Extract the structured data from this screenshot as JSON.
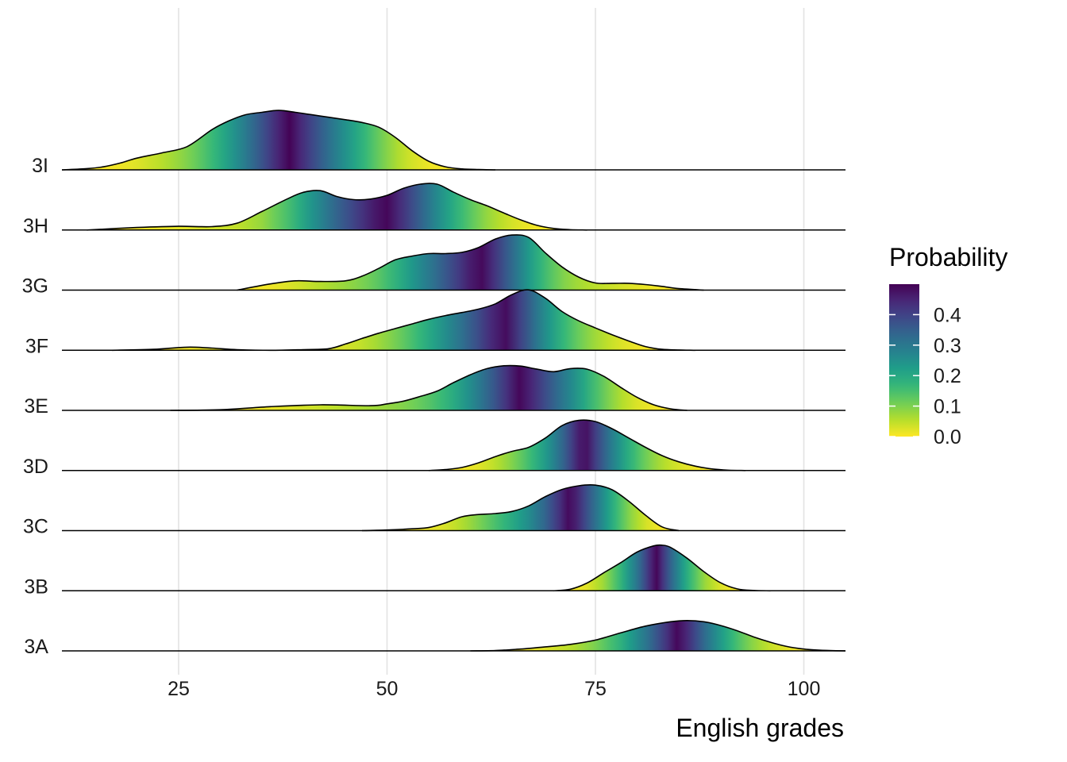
{
  "chart_data": {
    "type": "ridgeline",
    "xlabel": "English grades",
    "ylabel": "",
    "xlim": [
      11,
      105
    ],
    "x_ticks": [
      25,
      50,
      75,
      100
    ],
    "x_tick_labels": [
      "25",
      "50",
      "75",
      "100"
    ],
    "grid": "vertical major gridlines",
    "fill": "viridis gradient (reversed) mapped to tail probability",
    "legend": {
      "title": "Probability",
      "placement": "right",
      "ticks": [
        0.0,
        0.1,
        0.2,
        0.3,
        0.4
      ],
      "tick_labels": [
        "0.0",
        "0.1",
        "0.2",
        "0.3",
        "0.4"
      ],
      "max": 0.5
    },
    "series": [
      {
        "name": "3A",
        "x": [
          60,
          63,
          66,
          69,
          72,
          75,
          78,
          81,
          84,
          86,
          88,
          90,
          92,
          94,
          96,
          98,
          100,
          102,
          105
        ],
        "y": [
          0,
          0.01,
          0.06,
          0.13,
          0.21,
          0.35,
          0.58,
          0.8,
          0.94,
          0.98,
          0.94,
          0.82,
          0.65,
          0.45,
          0.28,
          0.14,
          0.06,
          0.02,
          0
        ]
      },
      {
        "name": "3B",
        "x": [
          70,
          72,
          74,
          76,
          78,
          80,
          82,
          83,
          84,
          86,
          88,
          90,
          92,
          94,
          96
        ],
        "y": [
          0,
          0.05,
          0.25,
          0.58,
          0.9,
          1.25,
          1.45,
          1.47,
          1.4,
          1.05,
          0.62,
          0.26,
          0.06,
          0.01,
          0
        ]
      },
      {
        "name": "3C",
        "x": [
          47,
          50,
          53,
          55,
          57,
          59,
          61,
          63,
          65,
          67,
          69,
          71,
          73,
          75,
          77,
          79,
          81,
          83,
          85
        ],
        "y": [
          0,
          0.02,
          0.06,
          0.1,
          0.25,
          0.45,
          0.52,
          0.55,
          0.62,
          0.8,
          1.1,
          1.33,
          1.45,
          1.47,
          1.32,
          0.95,
          0.5,
          0.12,
          0
        ]
      },
      {
        "name": "3D",
        "x": [
          55,
          57,
          59,
          61,
          63,
          65,
          67,
          69,
          71,
          73,
          75,
          77,
          79,
          81,
          83,
          85,
          87,
          89,
          91,
          93
        ],
        "y": [
          0,
          0.03,
          0.1,
          0.25,
          0.45,
          0.62,
          0.75,
          1.05,
          1.45,
          1.62,
          1.58,
          1.35,
          1.05,
          0.75,
          0.48,
          0.28,
          0.14,
          0.05,
          0.01,
          0
        ]
      },
      {
        "name": "3E",
        "x": [
          24,
          30,
          36,
          42,
          48,
          50,
          52,
          54,
          56,
          58,
          60,
          62,
          64,
          66,
          68,
          70,
          72,
          74,
          76,
          78,
          80,
          82,
          84,
          86
        ],
        "y": [
          0,
          0.02,
          0.12,
          0.18,
          0.15,
          0.21,
          0.3,
          0.45,
          0.62,
          0.9,
          1.15,
          1.35,
          1.44,
          1.43,
          1.33,
          1.25,
          1.35,
          1.33,
          1.1,
          0.75,
          0.42,
          0.18,
          0.05,
          0
        ]
      },
      {
        "name": "3F",
        "x": [
          17,
          22,
          26,
          29,
          32,
          36,
          40,
          43,
          45,
          47,
          49,
          51,
          53,
          55,
          57,
          59,
          61,
          63,
          65,
          67,
          69,
          71,
          73,
          75,
          77,
          79,
          81,
          83,
          85,
          87
        ],
        "y": [
          0,
          0.03,
          0.1,
          0.07,
          0.02,
          0,
          0.02,
          0.05,
          0.2,
          0.38,
          0.55,
          0.7,
          0.85,
          1.0,
          1.12,
          1.22,
          1.33,
          1.5,
          1.8,
          1.95,
          1.68,
          1.25,
          0.95,
          0.72,
          0.5,
          0.3,
          0.12,
          0.03,
          0.01,
          0
        ]
      },
      {
        "name": "3G",
        "x": [
          32,
          36,
          39,
          42,
          45,
          47,
          49,
          51,
          53,
          55,
          57,
          59,
          61,
          63,
          65,
          67,
          69,
          71,
          73,
          75,
          77,
          79,
          81,
          83,
          85,
          88
        ],
        "y": [
          0,
          0.2,
          0.3,
          0.28,
          0.3,
          0.45,
          0.7,
          0.98,
          1.1,
          1.18,
          1.18,
          1.22,
          1.38,
          1.65,
          1.78,
          1.7,
          1.2,
          0.75,
          0.42,
          0.23,
          0.22,
          0.22,
          0.18,
          0.12,
          0.05,
          0
        ]
      },
      {
        "name": "3H",
        "x": [
          14,
          20,
          25,
          29,
          32,
          35,
          38,
          40,
          42,
          44,
          46,
          48,
          50,
          52,
          54,
          56,
          58,
          60,
          62,
          64,
          66,
          68,
          70,
          72,
          74
        ],
        "y": [
          0,
          0.08,
          0.12,
          0.11,
          0.22,
          0.6,
          1.0,
          1.22,
          1.27,
          1.08,
          0.98,
          1.0,
          1.12,
          1.35,
          1.48,
          1.48,
          1.22,
          0.98,
          0.78,
          0.55,
          0.33,
          0.15,
          0.05,
          0.01,
          0
        ]
      },
      {
        "name": "3I",
        "x": [
          11,
          14,
          16,
          18,
          20,
          23,
          26,
          29,
          31,
          33,
          35,
          37,
          39,
          41,
          43,
          45,
          47,
          49,
          51,
          53,
          55,
          57,
          59,
          61,
          63
        ],
        "y": [
          0,
          0.04,
          0.1,
          0.22,
          0.38,
          0.55,
          0.75,
          1.3,
          1.58,
          1.78,
          1.86,
          1.92,
          1.86,
          1.78,
          1.7,
          1.62,
          1.53,
          1.38,
          1.05,
          0.62,
          0.28,
          0.1,
          0.03,
          0.01,
          0
        ]
      }
    ]
  }
}
